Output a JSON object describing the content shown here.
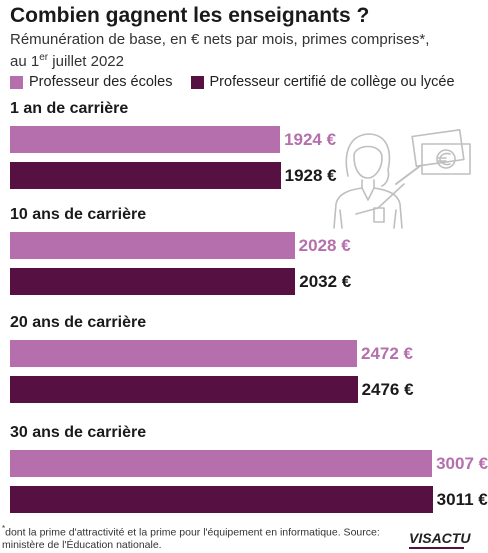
{
  "title": "Combien gagnent les enseignants ?",
  "subtitle_line1": "Rémunération de base, en € nets par mois, primes comprises*,",
  "subtitle_line2_pre": "au 1",
  "subtitle_line2_sup": "er",
  "subtitle_line2_post": " juillet 2022",
  "footnote_star": "*",
  "footnote_text": "dont la prime d'attractivité et la prime pour l'équipement en informatique. Source: ministère de l'Éducation nationale.",
  "logo": {
    "brand": "VISACTU"
  },
  "icons": {
    "illustration": "teacher-with-money-icon"
  },
  "colors": {
    "ecoles": "#b56fad",
    "certifie": "#561142",
    "label_ecoles": "#b56fad",
    "label_certifie": "#1a1a1a"
  },
  "chart_data": {
    "type": "bar",
    "orientation": "horizontal",
    "unit": "€",
    "categories": [
      "1 an de carrière",
      "10 ans de carrière",
      "20 ans de carrière",
      "30 ans de carrière"
    ],
    "series": [
      {
        "name": "Professeur des écoles",
        "values": [
          1924,
          2028,
          2472,
          3007
        ],
        "labels": [
          "1924 €",
          "2028 €",
          "2472 €",
          "3007 €"
        ]
      },
      {
        "name": "Professeur certifié de collège ou lycée",
        "values": [
          1928,
          2032,
          2476,
          3011
        ],
        "labels": [
          "1928 €",
          "2032 €",
          "2476 €",
          "3011 €"
        ]
      }
    ],
    "xlim": [
      0,
      3220
    ],
    "grid": false,
    "legend": "top-left"
  }
}
